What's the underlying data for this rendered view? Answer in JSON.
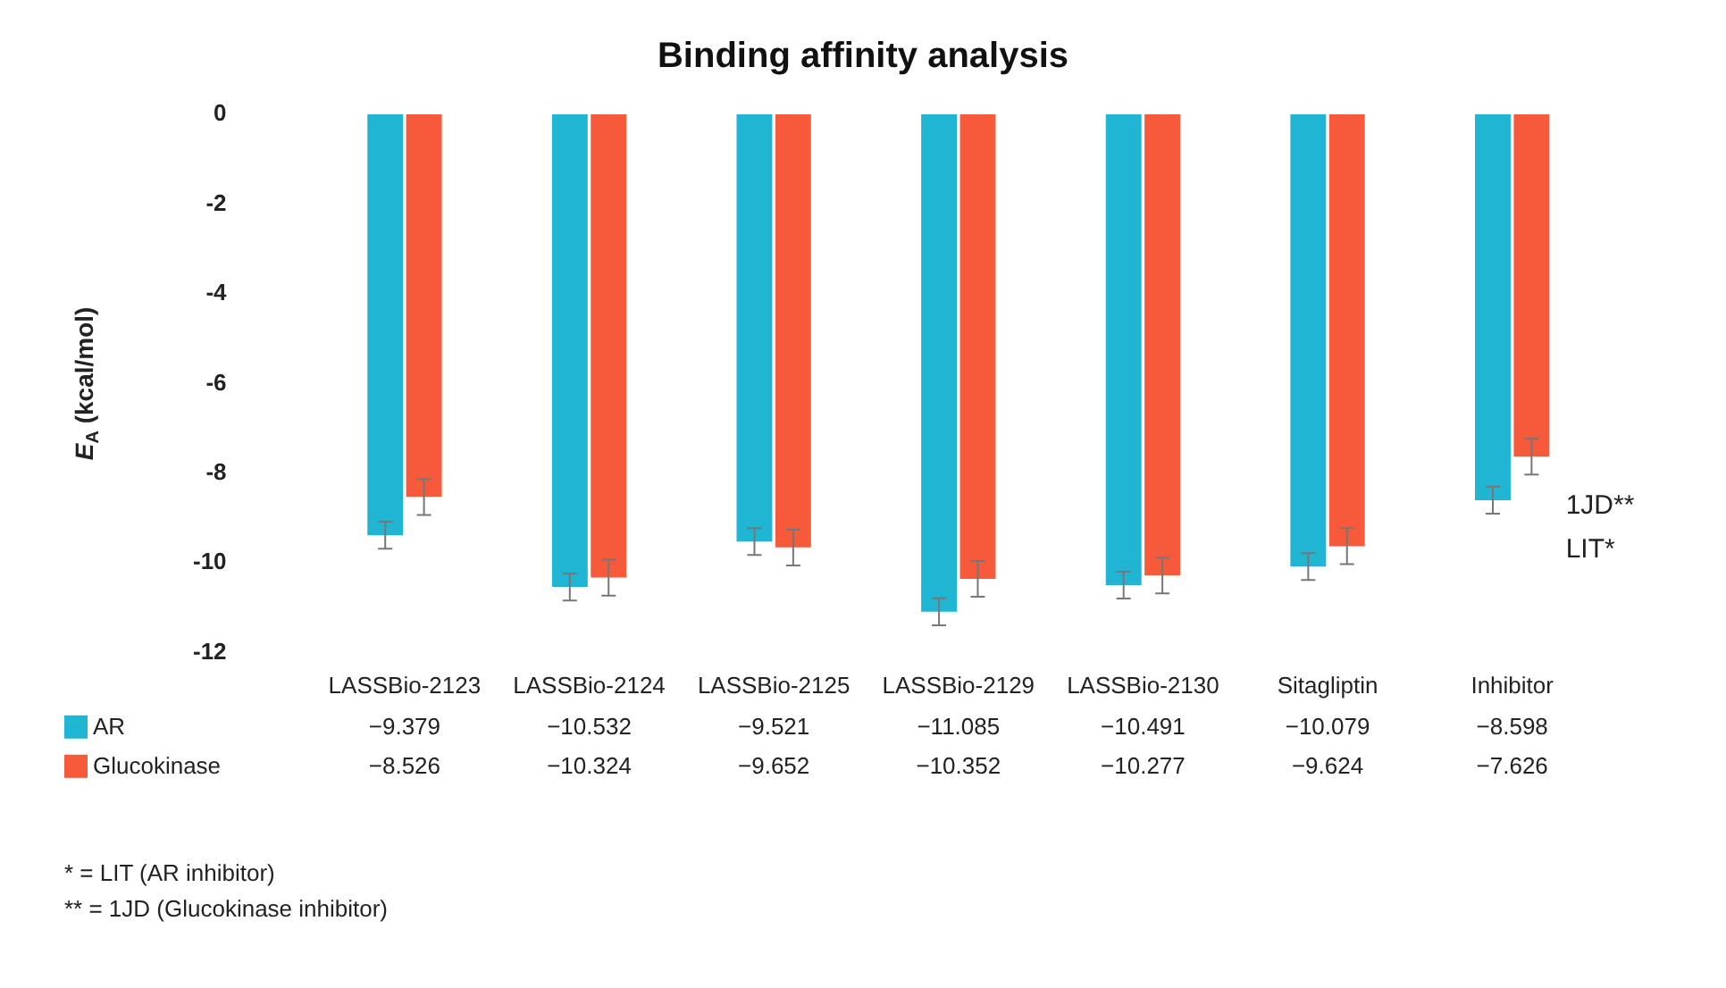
{
  "chart_data": {
    "type": "bar",
    "title": "Binding affinity analysis",
    "ylabel": "E$_{A}$ (kcal/mol)",
    "categories": [
      "LASSBio-2123",
      "LASSBio-2124",
      "LASSBio-2125",
      "LASSBio-2129",
      "LASSBio-2130",
      "Sitagliptin",
      "Inhibitor"
    ],
    "series": [
      {
        "name": "AR",
        "color": "#1fb5d3",
        "values": [
          -9.379,
          -10.532,
          -9.521,
          -11.085,
          -10.491,
          -10.079,
          -8.598
        ],
        "errors": [
          0.3,
          0.3,
          0.3,
          0.3,
          0.3,
          0.3,
          0.3
        ],
        "value_labels": [
          "−9.379",
          "−10.532",
          "−9.521",
          "−11.085",
          "−10.491",
          "−10.079",
          "−8.598"
        ]
      },
      {
        "name": "Glucokinase",
        "color": "#f75a3a",
        "values": [
          -8.526,
          -10.324,
          -9.652,
          -10.352,
          -10.277,
          -9.624,
          -7.626
        ],
        "errors": [
          0.4,
          0.4,
          0.4,
          0.4,
          0.4,
          0.4,
          0.4
        ],
        "value_labels": [
          "−8.526",
          "−10.324",
          "−9.652",
          "−10.352",
          "−10.277",
          "−9.624",
          "−7.626"
        ]
      }
    ],
    "ylim": [
      -12,
      0
    ],
    "yticks": [
      0,
      -2,
      -4,
      -6,
      -8,
      -10,
      -12
    ],
    "legend": "bottom left",
    "annotations": [
      {
        "text": "1JD**",
        "x": "Inhibitor",
        "y": -7.626
      },
      {
        "text": "LIT*",
        "x": "Inhibitor",
        "y": -8.598
      },
      "* = LIT (AR inhibitor)",
      "** = 1JD (Glucokinase inhibitor)"
    ]
  }
}
